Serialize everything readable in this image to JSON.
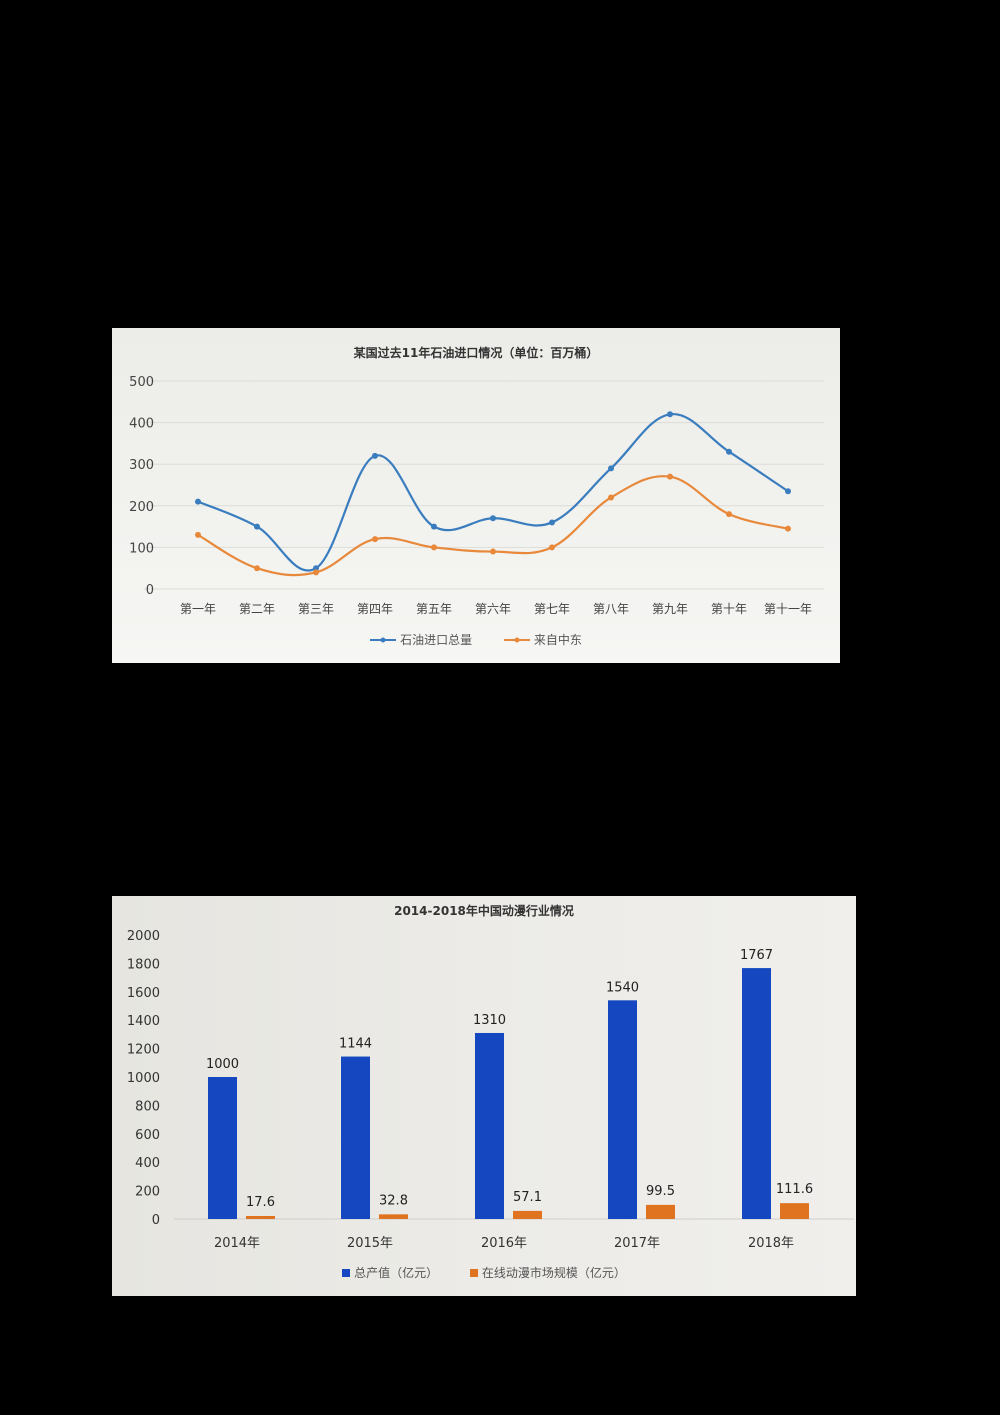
{
  "chart_data": [
    {
      "type": "line",
      "title": "某国过去11年石油进口情况（单位：百万桶）",
      "categories": [
        "第一年",
        "第二年",
        "第三年",
        "第四年",
        "第五年",
        "第六年",
        "第七年",
        "第八年",
        "第九年",
        "第十年",
        "第十一年"
      ],
      "series": [
        {
          "name": "石油进口总量",
          "color": "#3a7dbf",
          "values": [
            210,
            150,
            50,
            320,
            150,
            170,
            160,
            290,
            420,
            330,
            235
          ]
        },
        {
          "name": "来自中东",
          "color": "#e8883a",
          "values": [
            130,
            50,
            40,
            120,
            100,
            90,
            100,
            220,
            270,
            180,
            145
          ]
        }
      ],
      "xlabel": "",
      "ylabel": "",
      "yticks": [
        "0",
        "100",
        "200",
        "300",
        "400",
        "500"
      ],
      "ylim": [
        0,
        500
      ],
      "grid": true,
      "legend_position": "bottom",
      "smooth": true
    },
    {
      "type": "bar",
      "title": "2014-2018年中国动漫行业情况",
      "categories": [
        "2014年",
        "2015年",
        "2016年",
        "2017年",
        "2018年"
      ],
      "series": [
        {
          "name": "总产值（亿元）",
          "color": "#1447c0",
          "values": [
            1000,
            1144,
            1310,
            1540,
            1767
          ],
          "labels": [
            "1000",
            "1144",
            "1310",
            "1540",
            "1767"
          ]
        },
        {
          "name": "在线动漫市场规模（亿元）",
          "color": "#e0731f",
          "values": [
            17.6,
            32.8,
            57.1,
            99.5,
            111.6
          ],
          "labels": [
            "17.6",
            "32.8",
            "57.1",
            "99.5",
            "111.6"
          ]
        }
      ],
      "xlabel": "",
      "ylabel": "",
      "yticks": [
        "0",
        "200",
        "400",
        "600",
        "800",
        "1000",
        "1200",
        "1400",
        "1600",
        "1800",
        "2000"
      ],
      "ylim": [
        0,
        2000
      ],
      "grid": false,
      "legend_position": "bottom"
    }
  ]
}
